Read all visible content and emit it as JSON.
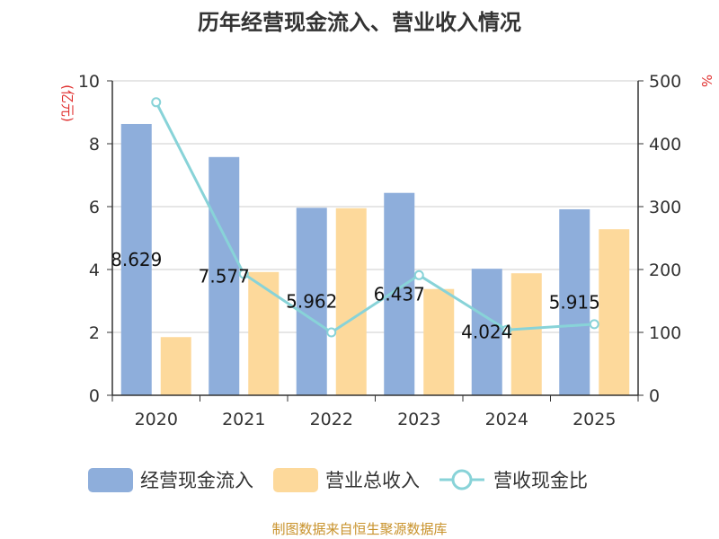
{
  "chart_data": {
    "type": "bar",
    "title": "历年经营现金流入、营业收入情况",
    "categories": [
      "2020",
      "2021",
      "2022",
      "2023",
      "2024",
      "2025"
    ],
    "series": [
      {
        "name": "经营现金流入",
        "type": "bar",
        "axis": "left",
        "color": "#8eaedb",
        "values": [
          8.629,
          7.577,
          5.962,
          6.437,
          4.024,
          5.915
        ],
        "labels": [
          "8.629",
          "7.577",
          "5.962",
          "6.437",
          "4.024",
          "5.915"
        ]
      },
      {
        "name": "营业总收入",
        "type": "bar",
        "axis": "left",
        "color": "#fdd99b",
        "values": [
          1.85,
          3.92,
          5.95,
          3.38,
          3.88,
          5.28
        ]
      },
      {
        "name": "营收现金比",
        "type": "line",
        "axis": "right",
        "color": "#88d3d8",
        "values": [
          466,
          193,
          100,
          191,
          104,
          113
        ]
      }
    ],
    "y_left": {
      "label": "(亿元)",
      "ylim": [
        0,
        10
      ],
      "ticks": [
        "0",
        "2",
        "4",
        "6",
        "8",
        "10"
      ]
    },
    "y_right": {
      "label": "%",
      "ylim": [
        0,
        500
      ],
      "ticks": [
        "0",
        "100",
        "200",
        "300",
        "400",
        "500"
      ]
    },
    "grid": true,
    "legend_position": "bottom",
    "source": "制图数据来自恒生聚源数据库",
    "colors": {
      "axis_label": "#e0302f",
      "source": "#c8922b",
      "grid": "#cccccc",
      "axis": "#333333"
    }
  }
}
